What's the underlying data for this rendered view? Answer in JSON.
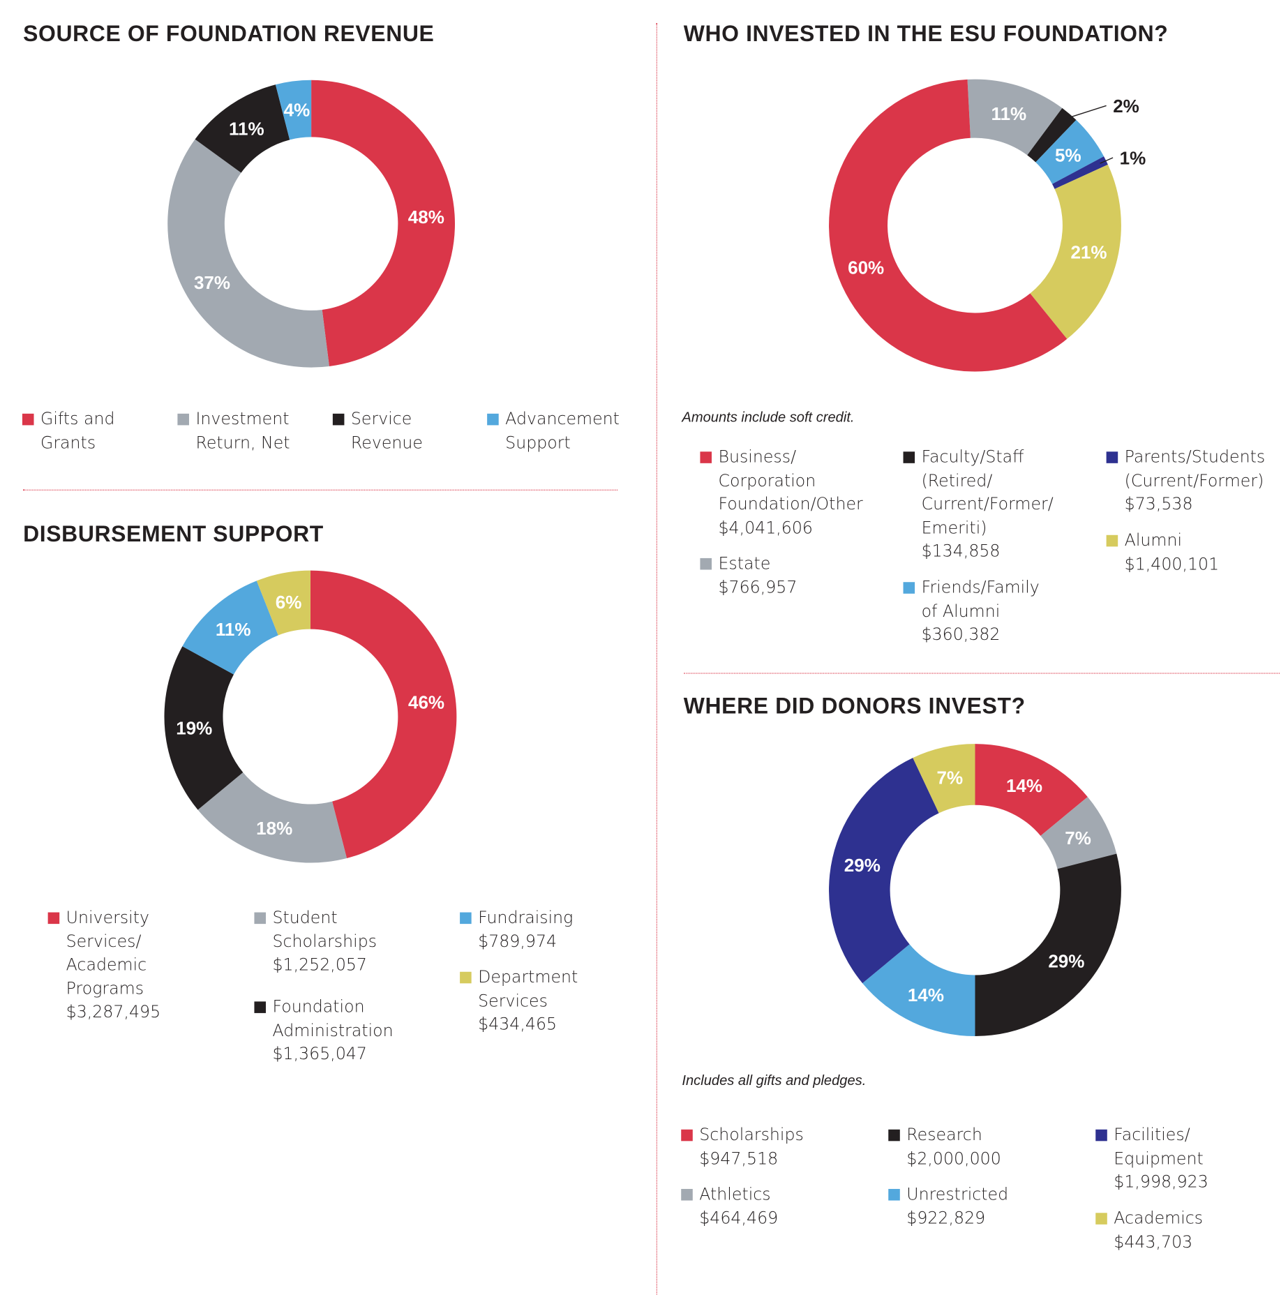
{
  "colors": {
    "red": "#da3649",
    "gray": "#a2a9b1",
    "black": "#231f20",
    "blue": "#53a8dd",
    "yellow": "#d6cb5e",
    "navy": "#2e3190"
  },
  "chart_data": [
    {
      "type": "pie",
      "title": "SOURCE OF FOUNDATION REVENUE",
      "categories": [
        "Gifts and Grants",
        "Investment Return, Net",
        "Service Revenue",
        "Advancement Support"
      ],
      "values": [
        48,
        37,
        11,
        4
      ],
      "labels": [
        "48%",
        "37%",
        "11%",
        "4%"
      ],
      "colors": [
        "red",
        "gray",
        "black",
        "blue"
      ]
    },
    {
      "type": "pie",
      "title": "DISBURSEMENT SUPPORT",
      "categories": [
        "University Services/ Academic Programs",
        "Student Scholarships",
        "Foundation Administration",
        "Fundraising",
        "Department Services"
      ],
      "values": [
        46,
        18,
        19,
        11,
        6
      ],
      "labels": [
        "46%",
        "18%",
        "19%",
        "11%",
        "6%"
      ],
      "amounts": [
        "$3,287,495",
        "$1,252,057",
        "$1,365,047",
        "$789,974",
        "$434,465"
      ],
      "colors": [
        "red",
        "gray",
        "black",
        "blue",
        "yellow"
      ]
    },
    {
      "type": "pie",
      "title": "WHO INVESTED IN THE ESU FOUNDATION?",
      "note": "Amounts include soft credit.",
      "categories": [
        "Estate",
        "Faculty/Staff (Retired/ Current/Former/ Emeriti)",
        "Friends/Family of Alumni",
        "Parents/Students (Current/Former)",
        "Alumni",
        "Business/ Corporation Foundation/Other"
      ],
      "values": [
        11,
        2,
        5,
        1,
        21,
        60
      ],
      "labels": [
        "11%",
        "2%",
        "5%",
        "1%",
        "21%",
        "60%"
      ],
      "amounts": [
        "$766,957",
        "$134,858",
        "$360,382",
        "$73,538",
        "$1,400,101",
        "$4,041,606"
      ],
      "colors": [
        "gray",
        "black",
        "blue",
        "navy",
        "yellow",
        "red"
      ]
    },
    {
      "type": "pie",
      "title": "WHERE DID DONORS INVEST?",
      "note": "Includes all gifts and pledges.",
      "categories": [
        "Scholarships",
        "Athletics",
        "Research",
        "Unrestricted",
        "Facilities/ Equipment",
        "Academics"
      ],
      "values": [
        14,
        7,
        29,
        14,
        29,
        7
      ],
      "labels": [
        "14%",
        "7%",
        "29%",
        "14%",
        "29%",
        "7%"
      ],
      "amounts": [
        "$947,518",
        "$464,469",
        "$2,000,000",
        "$922,829",
        "$1,998,923",
        "$443,703"
      ],
      "colors": [
        "red",
        "gray",
        "black",
        "blue",
        "navy",
        "yellow"
      ]
    }
  ],
  "legend1": [
    [
      "Gifts and",
      "Grants"
    ],
    [
      "Investment",
      "Return, Net"
    ],
    [
      "Service",
      "Revenue"
    ],
    [
      "Advancement",
      "Support"
    ]
  ],
  "legend2": [
    [
      "University",
      "Services/",
      "Academic",
      "Programs",
      "$3,287,495"
    ],
    [
      "Student",
      "Scholarships",
      "$1,252,057"
    ],
    [
      "Foundation",
      "Administration",
      "$1,365,047"
    ],
    [
      "Fundraising",
      "$789,974"
    ],
    [
      "Department",
      "Services",
      "$434,465"
    ]
  ],
  "legend3": [
    [
      "Business/",
      "Corporation",
      "Foundation/Other",
      "$4,041,606"
    ],
    [
      "Estate",
      "$766,957"
    ],
    [
      "Faculty/Staff",
      "(Retired/",
      "Current/Former/",
      "Emeriti)",
      "$134,858"
    ],
    [
      "Friends/Family",
      "of Alumni",
      "$360,382"
    ],
    [
      "Parents/Students",
      "(Current/Former)",
      "$73,538"
    ],
    [
      "Alumni",
      "$1,400,101"
    ]
  ],
  "legend4": [
    [
      "Scholarships",
      "$947,518"
    ],
    [
      "Athletics",
      "$464,469"
    ],
    [
      "Research",
      "$2,000,000"
    ],
    [
      "Unrestricted",
      "$922,829"
    ],
    [
      "Facilities/",
      "Equipment",
      "$1,998,923"
    ],
    [
      "Academics",
      "$443,703"
    ]
  ]
}
